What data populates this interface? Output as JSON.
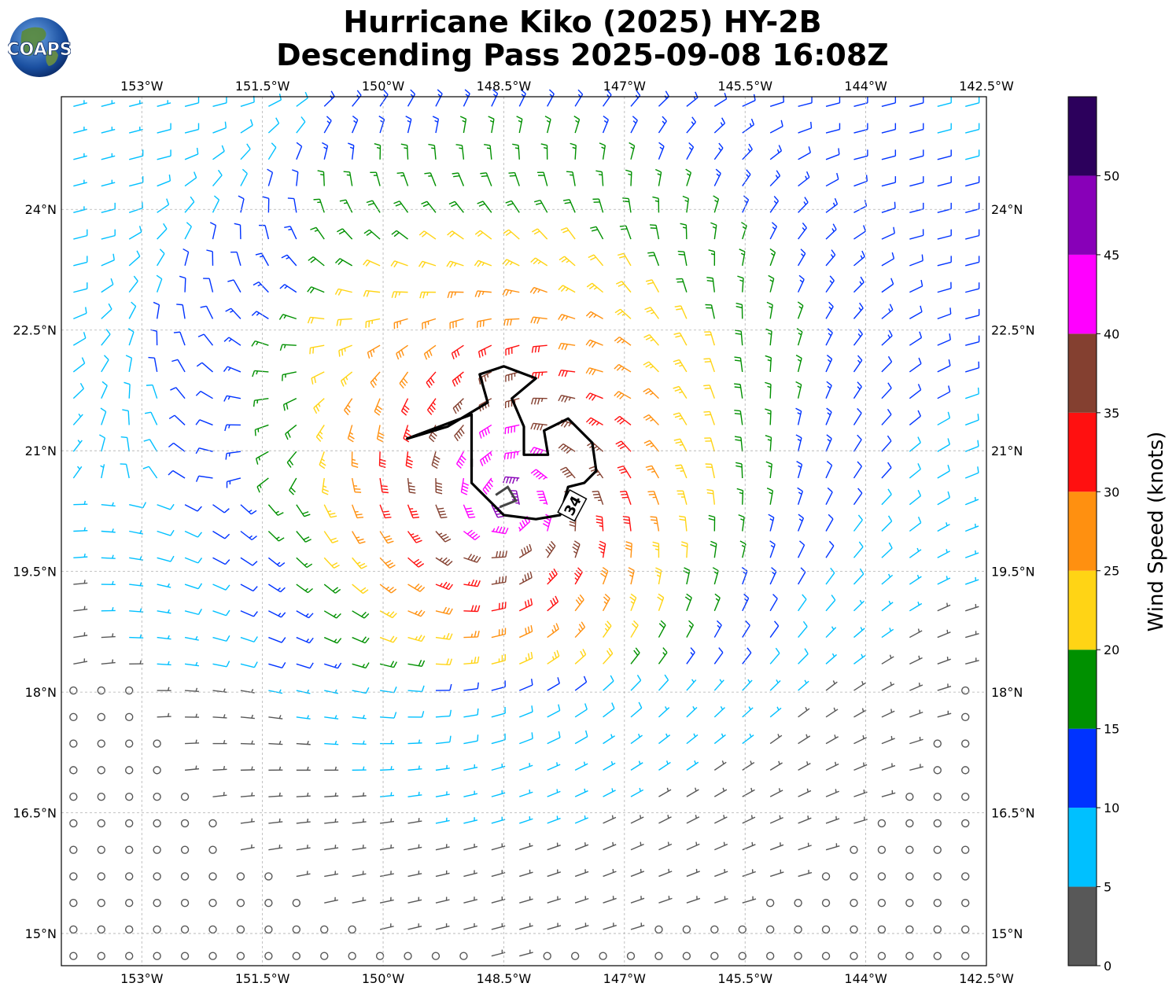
{
  "title_line1": "Hurricane Kiko (2025) HY-2B",
  "title_line2": "Descending Pass 2025-09-08 16:08Z",
  "logo_text": "COAPS",
  "colorbar": {
    "label": "Wind Speed (knots)",
    "ticks": [
      "0",
      "5",
      "10",
      "15",
      "20",
      "25",
      "30",
      "35",
      "40",
      "45",
      "50"
    ],
    "bins": [
      {
        "min": 0,
        "max": 5,
        "color": "#585858"
      },
      {
        "min": 5,
        "max": 10,
        "color": "#00c0ff"
      },
      {
        "min": 10,
        "max": 15,
        "color": "#0033ff"
      },
      {
        "min": 15,
        "max": 20,
        "color": "#009000"
      },
      {
        "min": 20,
        "max": 25,
        "color": "#ffd415"
      },
      {
        "min": 25,
        "max": 30,
        "color": "#ff9010"
      },
      {
        "min": 30,
        "max": 35,
        "color": "#ff1010"
      },
      {
        "min": 35,
        "max": 40,
        "color": "#844030"
      },
      {
        "min": 40,
        "max": 45,
        "color": "#ff00ff"
      },
      {
        "min": 45,
        "max": 50,
        "color": "#8800b8"
      },
      {
        "min": 50,
        "max": 55,
        "color": "#2c005c"
      }
    ]
  },
  "map_data": {
    "lon_range": [
      -154,
      -142.5
    ],
    "lat_range": [
      14.6,
      25.4
    ],
    "lon_ticks": [
      "153°W",
      "151.5°W",
      "150°W",
      "148.5°W",
      "147°W",
      "145.5°W",
      "144°W",
      "142.5°W"
    ],
    "lat_ticks": [
      "24°N",
      "22.5°N",
      "21°N",
      "19.5°N",
      "18°N",
      "16.5°N",
      "15°N"
    ],
    "contour_label": "34",
    "storm_center": {
      "lon": -148.45,
      "lat": 20.35
    },
    "contour_34kt": [
      [
        -148.9,
        20.9
      ],
      [
        -148.9,
        21.45
      ],
      [
        -149.7,
        21.15
      ],
      [
        -149.2,
        21.3
      ],
      [
        -148.7,
        21.6
      ],
      [
        -148.8,
        21.95
      ],
      [
        -148.5,
        22.05
      ],
      [
        -148.1,
        21.9
      ],
      [
        -148.4,
        21.65
      ],
      [
        -148.25,
        21.3
      ],
      [
        -148.25,
        20.95
      ],
      [
        -147.95,
        20.95
      ],
      [
        -148.0,
        21.25
      ],
      [
        -147.7,
        21.4
      ],
      [
        -147.4,
        21.1
      ],
      [
        -147.35,
        20.75
      ],
      [
        -147.5,
        20.6
      ],
      [
        -147.7,
        20.55
      ],
      [
        -147.8,
        20.2
      ],
      [
        -148.1,
        20.15
      ],
      [
        -148.5,
        20.2
      ],
      [
        -148.7,
        20.4
      ],
      [
        -148.9,
        20.6
      ],
      [
        -148.9,
        20.9
      ]
    ],
    "center_arc": [
      [
        -148.6,
        20.45
      ],
      [
        -148.45,
        20.55
      ],
      [
        -148.35,
        20.38
      ],
      [
        -148.55,
        20.3
      ]
    ]
  }
}
